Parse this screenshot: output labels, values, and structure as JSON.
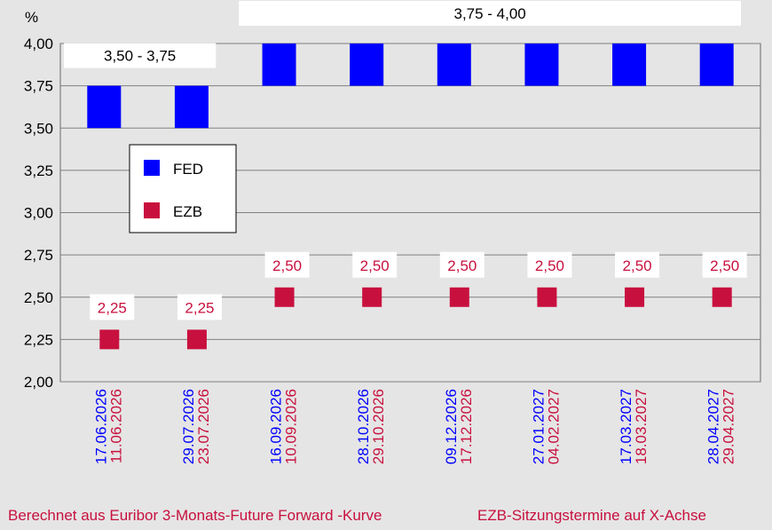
{
  "chart_data": {
    "type": "bar",
    "ylabel": "%",
    "ylim": [
      2.0,
      4.0
    ],
    "yticks": [
      "2,00",
      "2,25",
      "2,50",
      "2,75",
      "3,00",
      "3,25",
      "3,50",
      "3,75",
      "4,00"
    ],
    "ytick_values": [
      2.0,
      2.25,
      2.5,
      2.75,
      3.0,
      3.25,
      3.5,
      3.75,
      4.0
    ],
    "grid": true,
    "legend_placement": "left",
    "categories": [
      {
        "fed_date": "17.06.2026",
        "ezb_date": "11.06.2026"
      },
      {
        "fed_date": "29.07.2026",
        "ezb_date": "23.07.2026"
      },
      {
        "fed_date": "16.09.2026",
        "ezb_date": "10.09.2026"
      },
      {
        "fed_date": "28.10.2026",
        "ezb_date": "29.10.2026"
      },
      {
        "fed_date": "09.12.2026",
        "ezb_date": "17.12.2026"
      },
      {
        "fed_date": "27.01.2027",
        "ezb_date": "04.02.2027"
      },
      {
        "fed_date": "17.03.2027",
        "ezb_date": "18.03.2027"
      },
      {
        "fed_date": "28.04.2027",
        "ezb_date": "29.04.2027"
      }
    ],
    "series": [
      {
        "name": "FED",
        "kind": "range",
        "color": "#0000ff",
        "ranges": [
          [
            3.5,
            3.75
          ],
          [
            3.5,
            3.75
          ],
          [
            3.75,
            4.0
          ],
          [
            3.75,
            4.0
          ],
          [
            3.75,
            4.0
          ],
          [
            3.75,
            4.0
          ],
          [
            3.75,
            4.0
          ],
          [
            3.75,
            4.0
          ]
        ],
        "range_labels": [
          {
            "text": "3,50 - 3,75",
            "from_index": 0,
            "to_index": 1
          },
          {
            "text": "3,75 - 4,00",
            "from_index": 2,
            "to_index": 7
          }
        ]
      },
      {
        "name": "EZB",
        "kind": "point",
        "color": "#c8103e",
        "values": [
          2.25,
          2.25,
          2.5,
          2.5,
          2.5,
          2.5,
          2.5,
          2.5
        ],
        "value_labels": [
          "2,25",
          "2,25",
          "2,50",
          "2,50",
          "2,50",
          "2,50",
          "2,50",
          "2,50"
        ]
      }
    ]
  },
  "footer": {
    "left": "Berechnet aus Euribor 3-Monats-Future Forward -Kurve",
    "right": "EZB-Sitzungstermine auf X-Achse"
  }
}
